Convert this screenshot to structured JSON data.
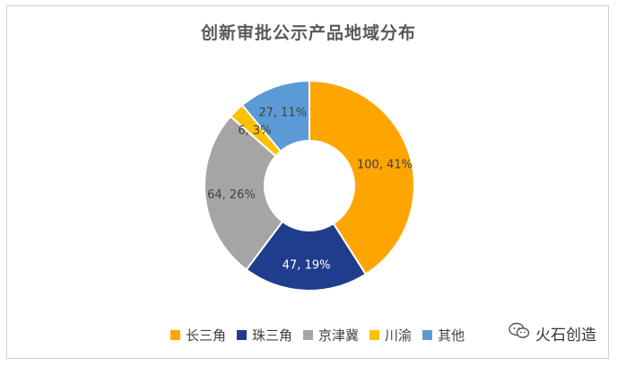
{
  "chart_data": {
    "type": "pie",
    "title": "创新审批公示产品地域分布",
    "categories": [
      "长三角",
      "珠三角",
      "京津冀",
      "川渝",
      "其他"
    ],
    "values": [
      100,
      47,
      64,
      6,
      27
    ],
    "percents": [
      "41%",
      "19%",
      "26%",
      "3%",
      "11%"
    ],
    "data_labels": [
      "100, 41%",
      "47, 19%",
      "64, 26%",
      "6, 3%",
      "27, 11%"
    ],
    "colors": [
      "#FFA500",
      "#1F3D8C",
      "#A5A5A5",
      "#FFC000",
      "#5B9BD5"
    ],
    "donut": true,
    "legend_position": "bottom"
  },
  "watermark": {
    "text": "火石创造",
    "icon": "wechat-icon"
  }
}
